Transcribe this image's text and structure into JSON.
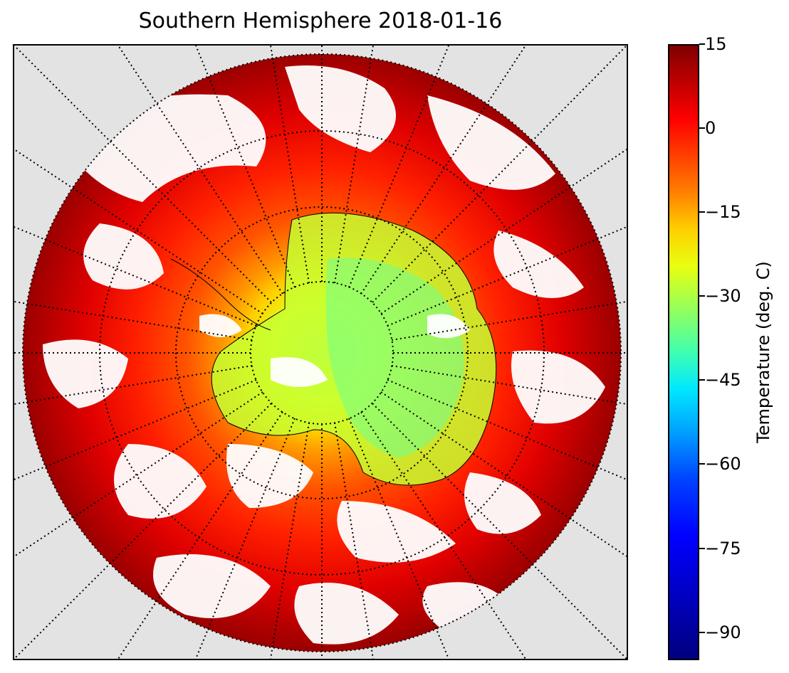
{
  "title": "Southern Hemisphere 2018-01-16",
  "map": {
    "projection": "south-polar-stereographic",
    "field": "surface temperature",
    "background_color": "#e3e3e3",
    "cloud_mask_color": "#ffffff",
    "gridlines": "dotted",
    "gridline_color": "#000000"
  },
  "colorbar": {
    "label": "Temperature (deg. C)",
    "colormap": "jet",
    "range": [
      -95,
      15
    ],
    "ticks": [
      "15",
      "0",
      "−15",
      "−30",
      "−45",
      "−60",
      "−75",
      "−90"
    ]
  }
}
